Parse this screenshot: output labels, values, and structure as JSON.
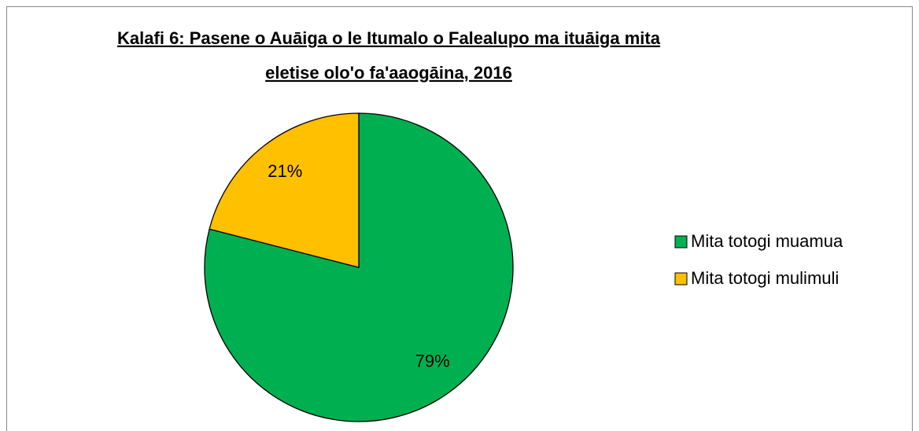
{
  "chart_data": {
    "type": "pie",
    "title": [
      "Kalafi 6: Pasene o Auāiga o le Itumalo o Falealupo ma ituāiga mita",
      "eletise olo'o fa'aaogāina, 2016"
    ],
    "categories": [
      "Mita totogi muamua",
      "Mita totogi mulimuli"
    ],
    "values": [
      79,
      21
    ],
    "value_labels": [
      "79%",
      "21%"
    ],
    "colors": [
      "#00b050",
      "#ffc000"
    ],
    "legend": "right"
  }
}
